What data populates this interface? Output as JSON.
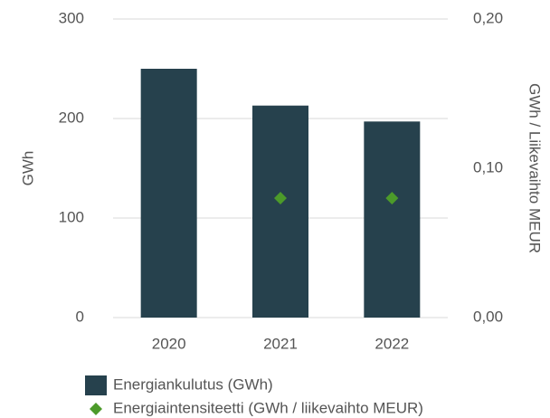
{
  "chart_data": {
    "type": "bar",
    "categories": [
      "2020",
      "2021",
      "2022"
    ],
    "series": [
      {
        "name": "Energiankulutus (GWh)",
        "color": "#26414d",
        "type": "bar",
        "values": [
          250,
          213,
          197
        ]
      },
      {
        "name": "Energiaintensiteetti (GWh / liikevaihto MEUR)",
        "color": "#4c9a2a",
        "type": "scatter",
        "axis": "y2",
        "values": [
          null,
          0.08,
          0.08
        ]
      }
    ],
    "ylabel": "GWh",
    "y2label": "GWh / Liikevaihto MEUR",
    "ylim": [
      0,
      300
    ],
    "yticks": [
      0,
      100,
      200,
      300
    ],
    "y2lim": [
      0,
      0.2
    ],
    "y2ticks": [
      {
        "value": 0,
        "label": "0,00"
      },
      {
        "value": 0.1,
        "label": "0,10"
      },
      {
        "value": 0.2,
        "label": "0,20"
      }
    ],
    "grid": true,
    "legend": "bottom"
  }
}
